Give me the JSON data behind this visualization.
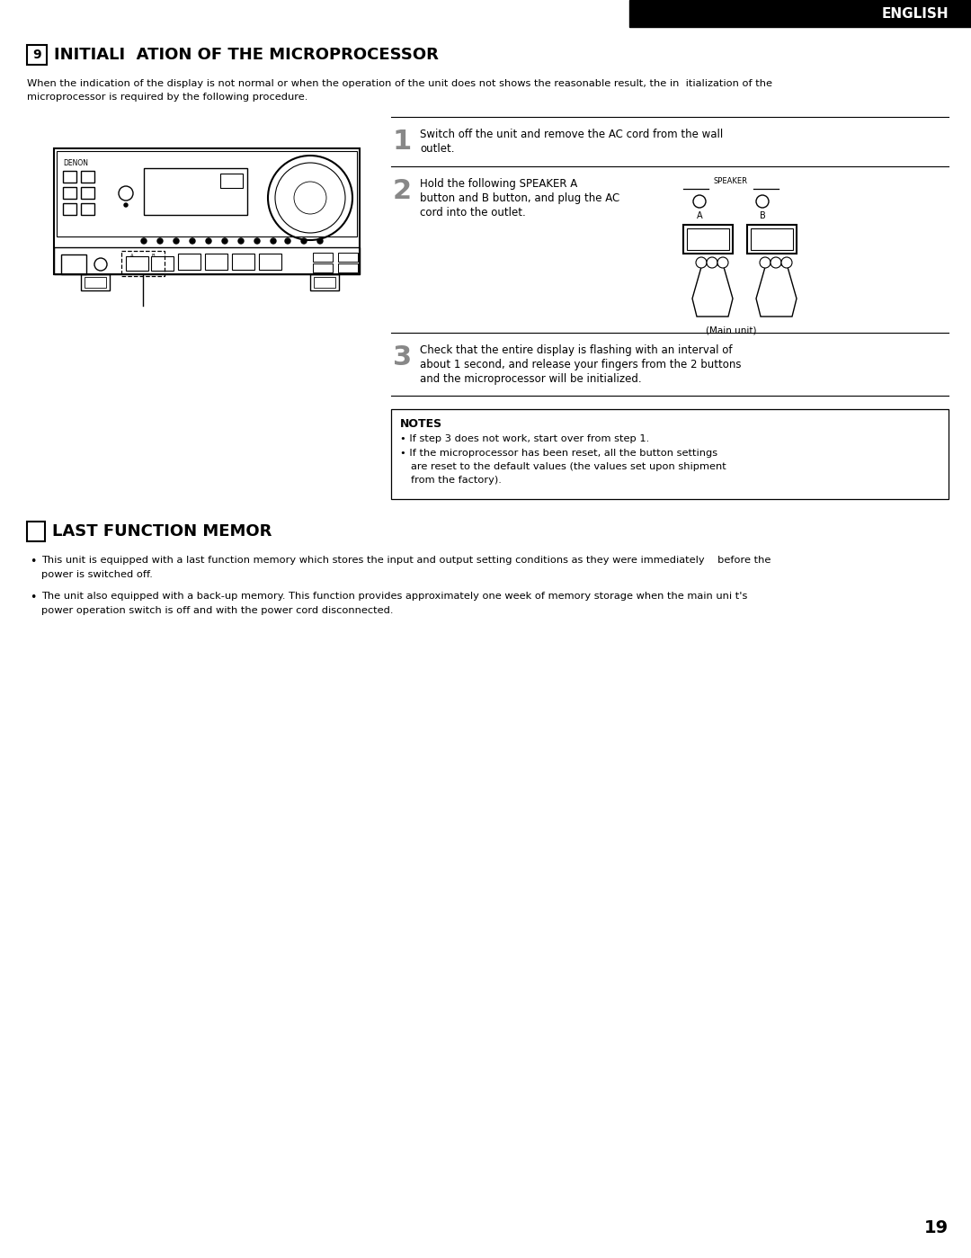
{
  "bg_color": "#ffffff",
  "page_number": "19",
  "header_bg": "#000000",
  "header_text": "ENGLISH",
  "header_text_color": "#ffffff",
  "section1_number": "9",
  "section1_title": "INITIALI  ATION OF THE MICROPROCESSOR",
  "intro_line1": "When the indication of the display is not normal or when the operation of the unit does not shows the reasonable result, the in  itialization of the",
  "intro_line2": "microprocessor is required by the following procedure.",
  "step1_num": "1",
  "step1_lines": [
    "Switch off the unit and remove the AC cord from the wall",
    "outlet."
  ],
  "step2_num": "2",
  "step2_lines": [
    "Hold the following SPEAKER A",
    "button and B button, and plug the AC",
    "cord into the outlet."
  ],
  "step2_caption": "(Main unit)",
  "step3_num": "3",
  "step3_lines": [
    "Check that the entire display is flashing with an interval of",
    "about 1 second, and release your fingers from the 2 buttons",
    "and the microprocessor will be initialized."
  ],
  "notes_title": "NOTES",
  "note1": "If step 3 does not work, start over from step 1.",
  "note2_lines": [
    "If the microprocessor has been reset, all the button settings",
    "are reset to the default values (the values set upon shipment",
    "from the factory)."
  ],
  "section2_title": "LAST FUNCTION MEMOR",
  "bullet1_lines": [
    "This unit is equipped with a last function memory which stores the input and output setting conditions as they were immediately    before the",
    "power is switched off."
  ],
  "bullet2_lines": [
    "The unit also equipped with a back-up memory. This function provides approximately one week of memory storage when the main uni t's",
    "power operation switch is off and with the power cord disconnected."
  ]
}
